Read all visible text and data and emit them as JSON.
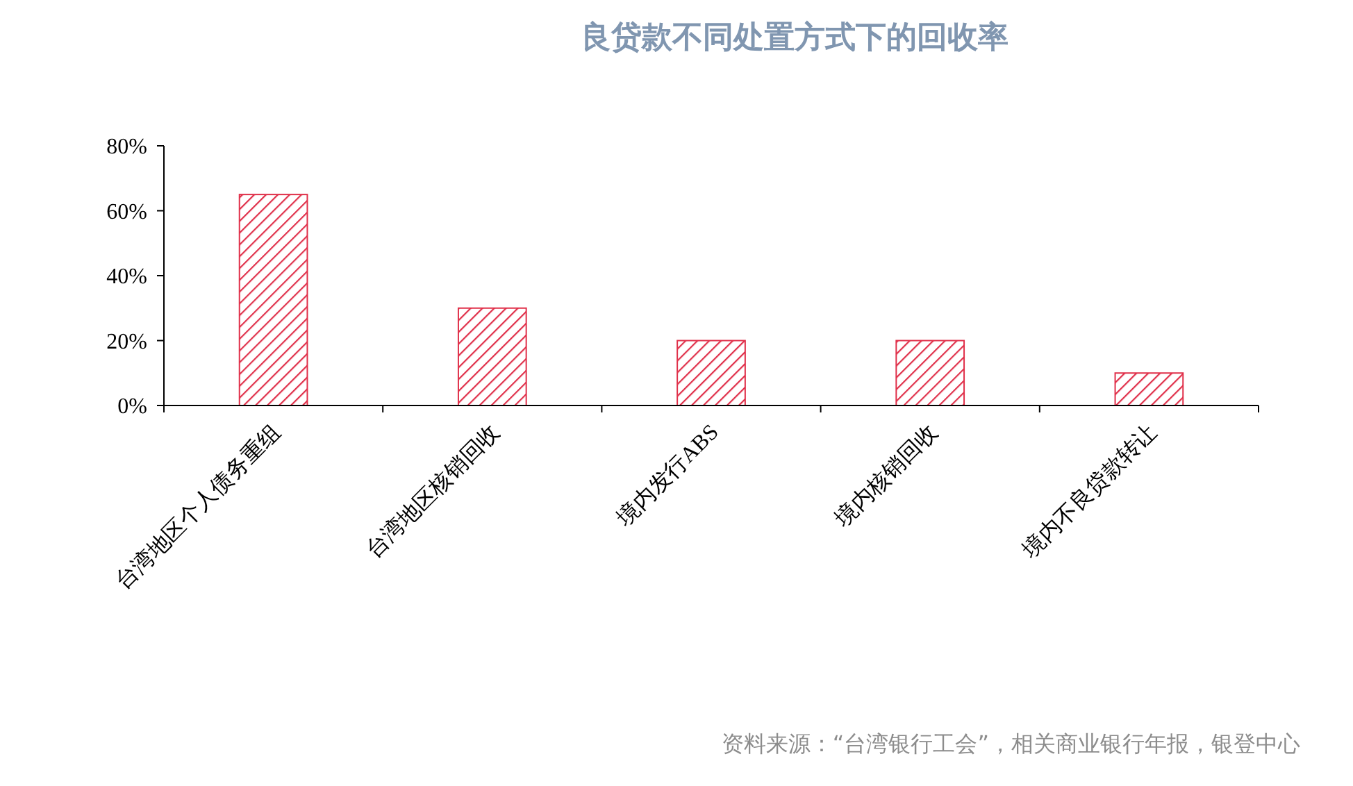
{
  "chart_data": {
    "type": "bar",
    "title": "良贷款不同处置方式下的回收率",
    "categories": [
      "台湾地区个人债务重组",
      "台湾地区核销回收",
      "境内发行ABS",
      "境内核销回收",
      "境内不良贷款转让"
    ],
    "values": [
      65,
      30,
      20,
      20,
      10
    ],
    "color": "#e0304a",
    "ylim": [
      0,
      80
    ],
    "yticks": [
      {
        "value": 0,
        "label": "0%"
      },
      {
        "value": 20,
        "label": "20%"
      },
      {
        "value": 40,
        "label": "40%"
      },
      {
        "value": 60,
        "label": "60%"
      },
      {
        "value": 80,
        "label": "80%"
      }
    ],
    "annotations": [
      "资料来源：“台湾银行工会”，相关商业银行年报，银登中心"
    ]
  }
}
